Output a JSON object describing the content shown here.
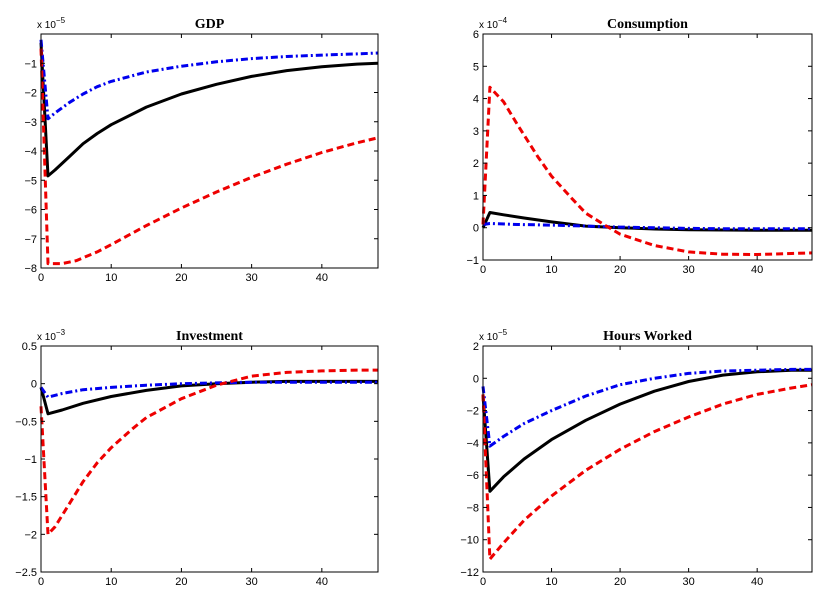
{
  "chart_data": [
    {
      "type": "line",
      "title": "GDP",
      "exponent": "x 10",
      "exponent_power": "-5",
      "xlim": [
        0,
        48
      ],
      "ylim": [
        -8,
        0
      ],
      "xticks": [
        0,
        10,
        20,
        30,
        40
      ],
      "yticks": [
        -8,
        -7,
        -6,
        -5,
        -4,
        -3,
        -2,
        -1
      ],
      "series": [
        {
          "style": "solid",
          "color": "#000000",
          "points": [
            [
              0,
              -0.3
            ],
            [
              1,
              -4.85
            ],
            [
              2,
              -4.65
            ],
            [
              4,
              -4.2
            ],
            [
              6,
              -3.75
            ],
            [
              8,
              -3.4
            ],
            [
              10,
              -3.1
            ],
            [
              15,
              -2.5
            ],
            [
              20,
              -2.05
            ],
            [
              25,
              -1.72
            ],
            [
              30,
              -1.45
            ],
            [
              35,
              -1.25
            ],
            [
              40,
              -1.12
            ],
            [
              45,
              -1.03
            ],
            [
              48,
              -1.0
            ]
          ]
        },
        {
          "style": "dashdot",
          "color": "#0000ee",
          "points": [
            [
              0,
              -0.2
            ],
            [
              1,
              -2.9
            ],
            [
              2,
              -2.7
            ],
            [
              4,
              -2.35
            ],
            [
              6,
              -2.05
            ],
            [
              8,
              -1.8
            ],
            [
              10,
              -1.62
            ],
            [
              15,
              -1.3
            ],
            [
              20,
              -1.1
            ],
            [
              25,
              -0.95
            ],
            [
              30,
              -0.84
            ],
            [
              35,
              -0.77
            ],
            [
              40,
              -0.72
            ],
            [
              45,
              -0.68
            ],
            [
              48,
              -0.65
            ]
          ]
        },
        {
          "style": "dashed",
          "color": "#ee0000",
          "points": [
            [
              0,
              -0.5
            ],
            [
              1,
              -7.85
            ],
            [
              3,
              -7.85
            ],
            [
              5,
              -7.75
            ],
            [
              8,
              -7.45
            ],
            [
              10,
              -7.2
            ],
            [
              15,
              -6.55
            ],
            [
              20,
              -5.95
            ],
            [
              25,
              -5.4
            ],
            [
              30,
              -4.9
            ],
            [
              35,
              -4.45
            ],
            [
              40,
              -4.05
            ],
            [
              45,
              -3.72
            ],
            [
              48,
              -3.55
            ]
          ]
        }
      ]
    },
    {
      "type": "line",
      "title": "Consumption",
      "exponent": "x 10",
      "exponent_power": "-4",
      "xlim": [
        0,
        48
      ],
      "ylim": [
        -1,
        6
      ],
      "xticks": [
        0,
        10,
        20,
        30,
        40
      ],
      "yticks": [
        -1,
        0,
        1,
        2,
        3,
        4,
        5,
        6
      ],
      "series": [
        {
          "style": "solid",
          "color": "#000000",
          "points": [
            [
              0,
              0.0
            ],
            [
              1,
              0.47
            ],
            [
              3,
              0.4
            ],
            [
              6,
              0.3
            ],
            [
              10,
              0.18
            ],
            [
              15,
              0.05
            ],
            [
              20,
              0.0
            ],
            [
              25,
              -0.04
            ],
            [
              30,
              -0.06
            ],
            [
              35,
              -0.07
            ],
            [
              40,
              -0.08
            ],
            [
              45,
              -0.08
            ],
            [
              48,
              -0.08
            ]
          ]
        },
        {
          "style": "dashdot",
          "color": "#0000ee",
          "points": [
            [
              0,
              0.1
            ],
            [
              1,
              0.13
            ],
            [
              5,
              0.1
            ],
            [
              10,
              0.08
            ],
            [
              15,
              0.05
            ],
            [
              20,
              0.02
            ],
            [
              25,
              0.0
            ],
            [
              30,
              -0.02
            ],
            [
              35,
              -0.03
            ],
            [
              40,
              -0.03
            ],
            [
              45,
              -0.03
            ],
            [
              48,
              -0.03
            ]
          ]
        },
        {
          "style": "dashed",
          "color": "#ee0000",
          "points": [
            [
              0,
              0.1
            ],
            [
              1,
              4.35
            ],
            [
              3,
              3.9
            ],
            [
              5,
              3.2
            ],
            [
              8,
              2.2
            ],
            [
              10,
              1.6
            ],
            [
              13,
              0.9
            ],
            [
              15,
              0.45
            ],
            [
              18,
              0.05
            ],
            [
              20,
              -0.2
            ],
            [
              25,
              -0.55
            ],
            [
              30,
              -0.75
            ],
            [
              35,
              -0.82
            ],
            [
              40,
              -0.83
            ],
            [
              45,
              -0.8
            ],
            [
              48,
              -0.78
            ]
          ]
        }
      ]
    },
    {
      "type": "line",
      "title": "Investment",
      "exponent": "x 10",
      "exponent_power": "-3",
      "xlim": [
        0,
        48
      ],
      "ylim": [
        -2.5,
        0.5
      ],
      "xticks": [
        0,
        10,
        20,
        30,
        40
      ],
      "yticks": [
        -2.5,
        -2,
        -1.5,
        -1,
        -0.5,
        0,
        0.5
      ],
      "ytick_labels": [
        "−2.5",
        "−2",
        "−1.5",
        "−1",
        "−0.5",
        "0",
        "0.5"
      ],
      "series": [
        {
          "style": "solid",
          "color": "#000000",
          "points": [
            [
              0,
              -0.05
            ],
            [
              1,
              -0.4
            ],
            [
              3,
              -0.35
            ],
            [
              6,
              -0.26
            ],
            [
              10,
              -0.17
            ],
            [
              15,
              -0.09
            ],
            [
              20,
              -0.03
            ],
            [
              25,
              0.0
            ],
            [
              30,
              0.02
            ],
            [
              35,
              0.03
            ],
            [
              40,
              0.03
            ],
            [
              48,
              0.03
            ]
          ]
        },
        {
          "style": "dashdot",
          "color": "#0000ee",
          "points": [
            [
              0,
              -0.05
            ],
            [
              1,
              -0.18
            ],
            [
              3,
              -0.13
            ],
            [
              6,
              -0.08
            ],
            [
              10,
              -0.05
            ],
            [
              15,
              -0.02
            ],
            [
              20,
              0.0
            ],
            [
              25,
              0.01
            ],
            [
              30,
              0.02
            ],
            [
              35,
              0.02
            ],
            [
              40,
              0.02
            ],
            [
              48,
              0.02
            ]
          ]
        },
        {
          "style": "dashed",
          "color": "#ee0000",
          "points": [
            [
              0,
              -0.3
            ],
            [
              1,
              -2.0
            ],
            [
              2,
              -1.9
            ],
            [
              4,
              -1.6
            ],
            [
              6,
              -1.3
            ],
            [
              8,
              -1.05
            ],
            [
              10,
              -0.85
            ],
            [
              13,
              -0.6
            ],
            [
              15,
              -0.45
            ],
            [
              20,
              -0.2
            ],
            [
              25,
              -0.02
            ],
            [
              30,
              0.1
            ],
            [
              35,
              0.15
            ],
            [
              40,
              0.17
            ],
            [
              45,
              0.18
            ],
            [
              48,
              0.18
            ]
          ]
        }
      ]
    },
    {
      "type": "line",
      "title": "Hours Worked",
      "exponent": "x 10",
      "exponent_power": "-5",
      "xlim": [
        0,
        48
      ],
      "ylim": [
        -12,
        2
      ],
      "xticks": [
        0,
        10,
        20,
        30,
        40
      ],
      "yticks": [
        -12,
        -10,
        -8,
        -6,
        -4,
        -2,
        0,
        2
      ],
      "ytick_labels": [
        "−12",
        "−10",
        "−8",
        "−6",
        "−4",
        "−2",
        "0",
        "2"
      ],
      "series": [
        {
          "style": "solid",
          "color": "#000000",
          "points": [
            [
              0,
              -1.0
            ],
            [
              1,
              -7.0
            ],
            [
              3,
              -6.1
            ],
            [
              6,
              -5.0
            ],
            [
              10,
              -3.8
            ],
            [
              15,
              -2.6
            ],
            [
              20,
              -1.6
            ],
            [
              25,
              -0.8
            ],
            [
              30,
              -0.2
            ],
            [
              35,
              0.2
            ],
            [
              40,
              0.4
            ],
            [
              45,
              0.5
            ],
            [
              48,
              0.5
            ]
          ]
        },
        {
          "style": "dashdot",
          "color": "#0000ee",
          "points": [
            [
              0,
              -0.5
            ],
            [
              1,
              -4.2
            ],
            [
              3,
              -3.6
            ],
            [
              6,
              -2.8
            ],
            [
              10,
              -2.0
            ],
            [
              15,
              -1.1
            ],
            [
              20,
              -0.4
            ],
            [
              25,
              0.0
            ],
            [
              30,
              0.3
            ],
            [
              35,
              0.45
            ],
            [
              40,
              0.5
            ],
            [
              45,
              0.55
            ],
            [
              48,
              0.55
            ]
          ]
        },
        {
          "style": "dashed",
          "color": "#ee0000",
          "points": [
            [
              0,
              -1.0
            ],
            [
              1,
              -11.2
            ],
            [
              3,
              -10.2
            ],
            [
              6,
              -8.8
            ],
            [
              10,
              -7.3
            ],
            [
              15,
              -5.7
            ],
            [
              20,
              -4.4
            ],
            [
              25,
              -3.3
            ],
            [
              30,
              -2.4
            ],
            [
              35,
              -1.6
            ],
            [
              40,
              -1.0
            ],
            [
              45,
              -0.6
            ],
            [
              48,
              -0.4
            ]
          ]
        }
      ]
    }
  ]
}
